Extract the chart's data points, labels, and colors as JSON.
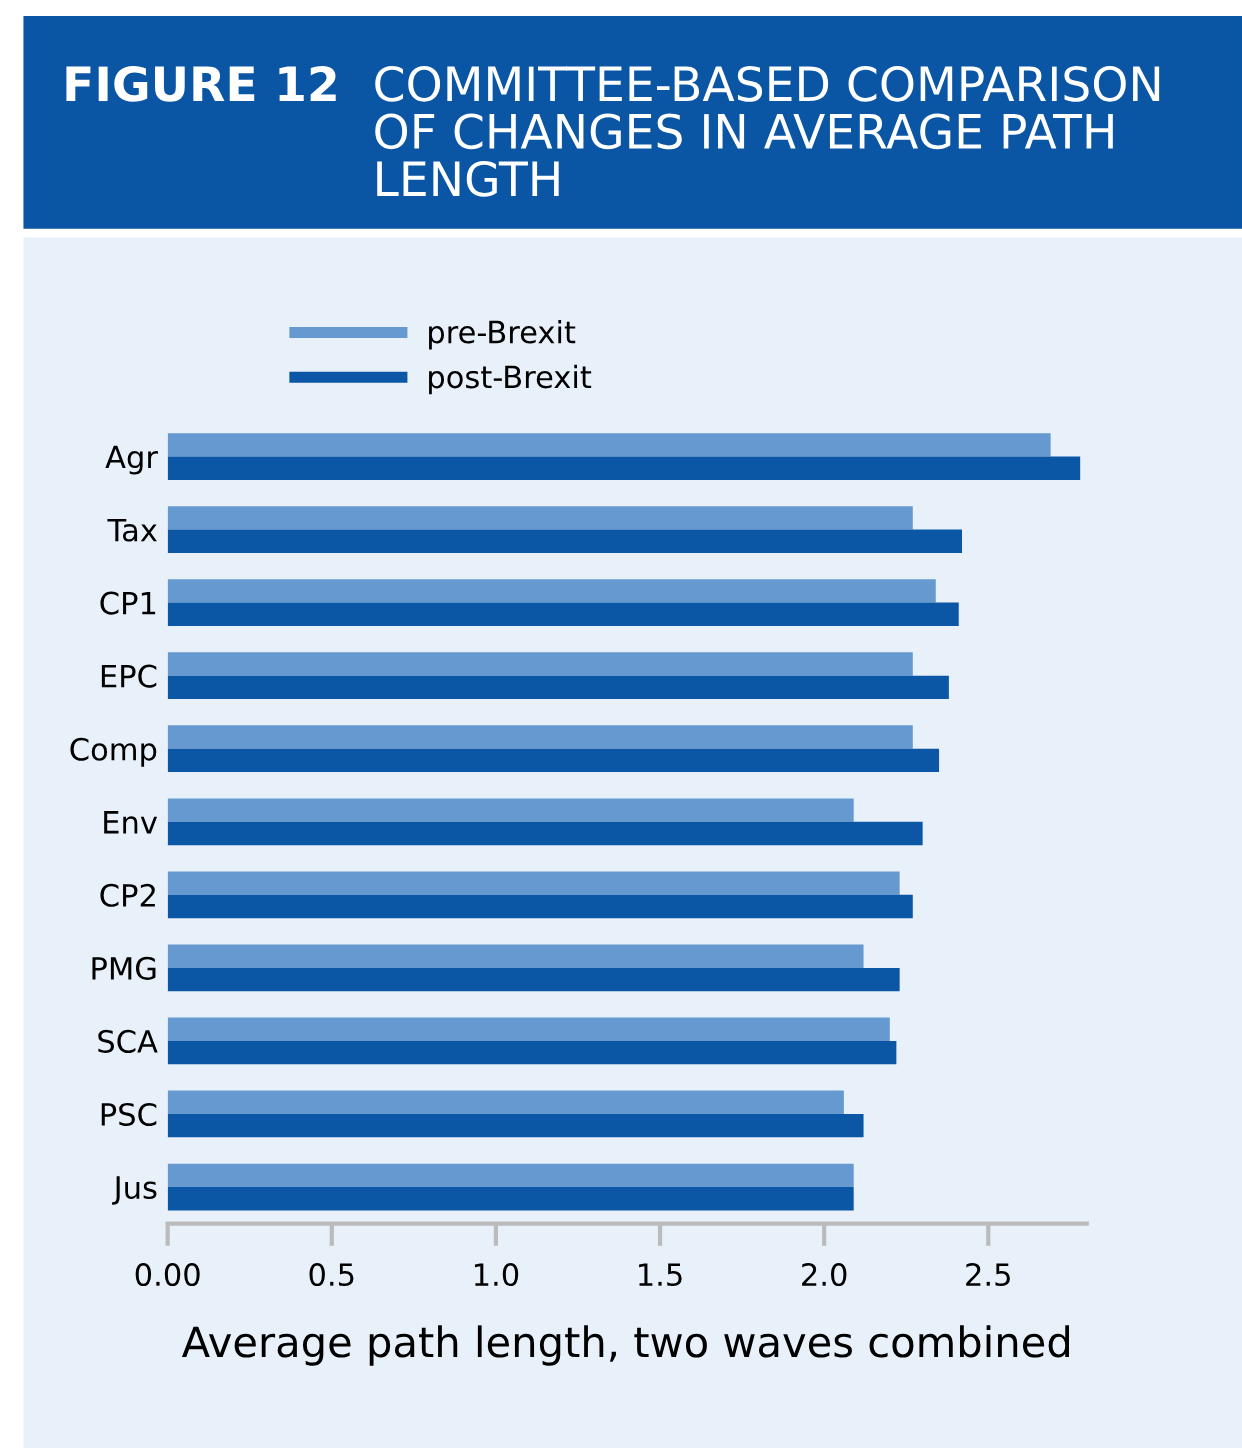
{
  "chart_data": {
    "type": "bar",
    "orientation": "horizontal",
    "title": "FIGURE 12",
    "subtitle": "COMMITTEE-BASED COMPARISON OF CHANGES IN AVERAGE PATH LENGTH",
    "xlabel": "Average path length, two waves combined",
    "categories": [
      "Agr",
      "Tax",
      "CP1",
      "EPC",
      "Comp",
      "Env",
      "CP2",
      "PMG",
      "SCA",
      "PSC",
      "Jus"
    ],
    "series": [
      {
        "name": "pre-Brexit",
        "color": "#6699cf",
        "values": [
          2.69,
          2.27,
          2.34,
          2.27,
          2.27,
          2.09,
          2.23,
          2.12,
          2.2,
          2.06,
          2.09
        ]
      },
      {
        "name": "post-Brexit",
        "color": "#0b56a5",
        "values": [
          2.78,
          2.42,
          2.41,
          2.38,
          2.35,
          2.3,
          2.27,
          2.23,
          2.22,
          2.12,
          2.09
        ]
      }
    ],
    "xlim": [
      0,
      2.8
    ],
    "xticks": [
      {
        "value": 0,
        "label": "0.00"
      },
      {
        "value": 0.5,
        "label": "0.5"
      },
      {
        "value": 1,
        "label": "1.0"
      },
      {
        "value": 1.5,
        "label": "1.5"
      },
      {
        "value": 2,
        "label": "2.0"
      },
      {
        "value": 2.5,
        "label": "2.5"
      }
    ],
    "grid": false,
    "legend": "top"
  }
}
